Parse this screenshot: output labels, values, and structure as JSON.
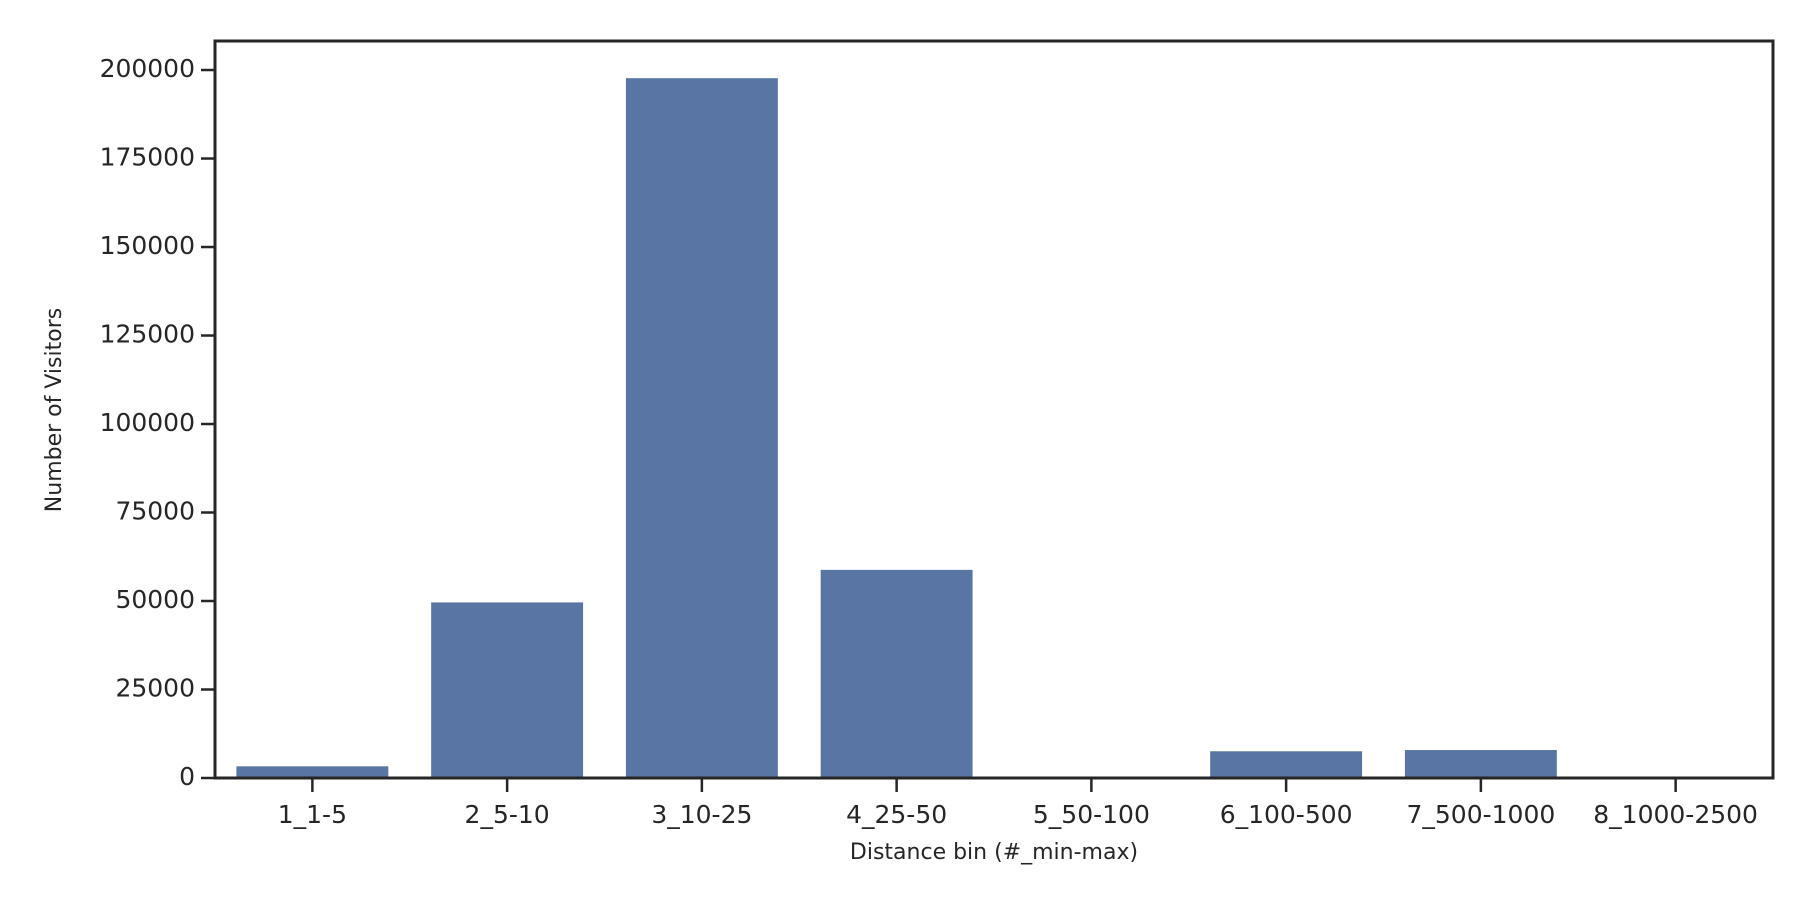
{
  "chart_data": {
    "type": "bar",
    "x_label": "Distance bin (#_min-max)",
    "y_label": "Number of Visitors",
    "categories": [
      "1_1-5",
      "2_5-10",
      "3_10-25",
      "4_25-50",
      "5_50-100",
      "6_100-500",
      "7_500-1000",
      "8_1000-2500"
    ],
    "values": [
      3300,
      49600,
      197700,
      58800,
      0,
      7550,
      7900,
      0
    ],
    "color": "#5975a4",
    "ylim": [
      0,
      208200
    ],
    "yticks": [
      0,
      25000,
      50000,
      75000,
      100000,
      125000,
      150000,
      175000,
      200000
    ],
    "grid": false
  }
}
